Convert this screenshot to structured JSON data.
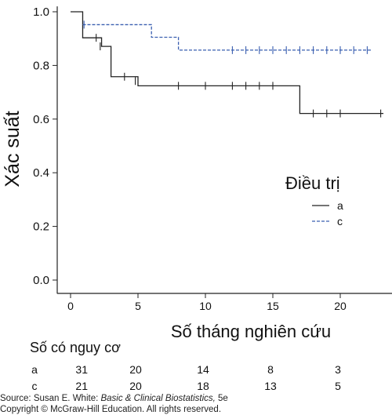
{
  "chart_data": {
    "type": "line",
    "subtype": "kaplan-meier-step",
    "ylabel": "Xác suất",
    "xlabel": "Số tháng nghiên cứu",
    "xlim": [
      -1,
      24
    ],
    "ylim": [
      -0.05,
      1.02
    ],
    "x_ticks": [
      0,
      5,
      10,
      15,
      20
    ],
    "y_ticks": [
      0.0,
      0.2,
      0.4,
      0.6,
      0.8,
      1.0
    ],
    "y_tick_labels": [
      "0.0",
      "0.2",
      "0.4",
      "0.6",
      "0.8",
      "1.0"
    ],
    "grid": false,
    "legend": {
      "title": "Điều trị",
      "position": "center-right"
    },
    "series": [
      {
        "name": "a",
        "color": "#222222",
        "line_style": "solid",
        "steps": [
          [
            0,
            1.0
          ],
          [
            0.9,
            0.903
          ],
          [
            2.3,
            0.871
          ],
          [
            3.0,
            0.758
          ],
          [
            5.0,
            0.724
          ],
          [
            17.0,
            0.621
          ],
          [
            23.2,
            0.621
          ]
        ],
        "censored": [
          [
            1.9,
            0.903
          ],
          [
            2.2,
            0.871
          ],
          [
            4.0,
            0.758
          ],
          [
            4.8,
            0.742
          ],
          [
            8.0,
            0.724
          ],
          [
            10.0,
            0.724
          ],
          [
            12.0,
            0.724
          ],
          [
            13.0,
            0.724
          ],
          [
            14.0,
            0.724
          ],
          [
            15.0,
            0.724
          ],
          [
            18.0,
            0.621
          ],
          [
            19.0,
            0.621
          ],
          [
            20.0,
            0.621
          ],
          [
            23.0,
            0.621
          ]
        ]
      },
      {
        "name": "c",
        "color": "#3a5fb0",
        "line_style": "dashed",
        "steps": [
          [
            0.9,
            0.952
          ],
          [
            6.0,
            0.905
          ],
          [
            8.0,
            0.857
          ],
          [
            22.3,
            0.857
          ]
        ],
        "censored": [
          [
            1.0,
            0.952
          ],
          [
            12.0,
            0.857
          ],
          [
            13.0,
            0.857
          ],
          [
            14.0,
            0.857
          ],
          [
            15.0,
            0.857
          ],
          [
            16.0,
            0.857
          ],
          [
            17.0,
            0.857
          ],
          [
            18.0,
            0.857
          ],
          [
            19.0,
            0.857
          ],
          [
            20.0,
            0.857
          ],
          [
            21.0,
            0.857
          ],
          [
            22.0,
            0.857
          ]
        ]
      }
    ],
    "risk_table": {
      "title": "Số có nguy cơ",
      "times": [
        1,
        5,
        10,
        15,
        20
      ],
      "rows": [
        {
          "label": "a",
          "values": [
            "31",
            "20",
            "14",
            "8",
            "3"
          ]
        },
        {
          "label": "c",
          "values": [
            "21",
            "20",
            "18",
            "13",
            "5"
          ]
        }
      ]
    }
  },
  "source": {
    "prefix": "Source: Susan E. White: ",
    "book": "Basic & Clinical Biostatistics,",
    "suffix": " 5e",
    "copyright": "Copyright © McGraw-Hill Education. All rights reserved."
  }
}
